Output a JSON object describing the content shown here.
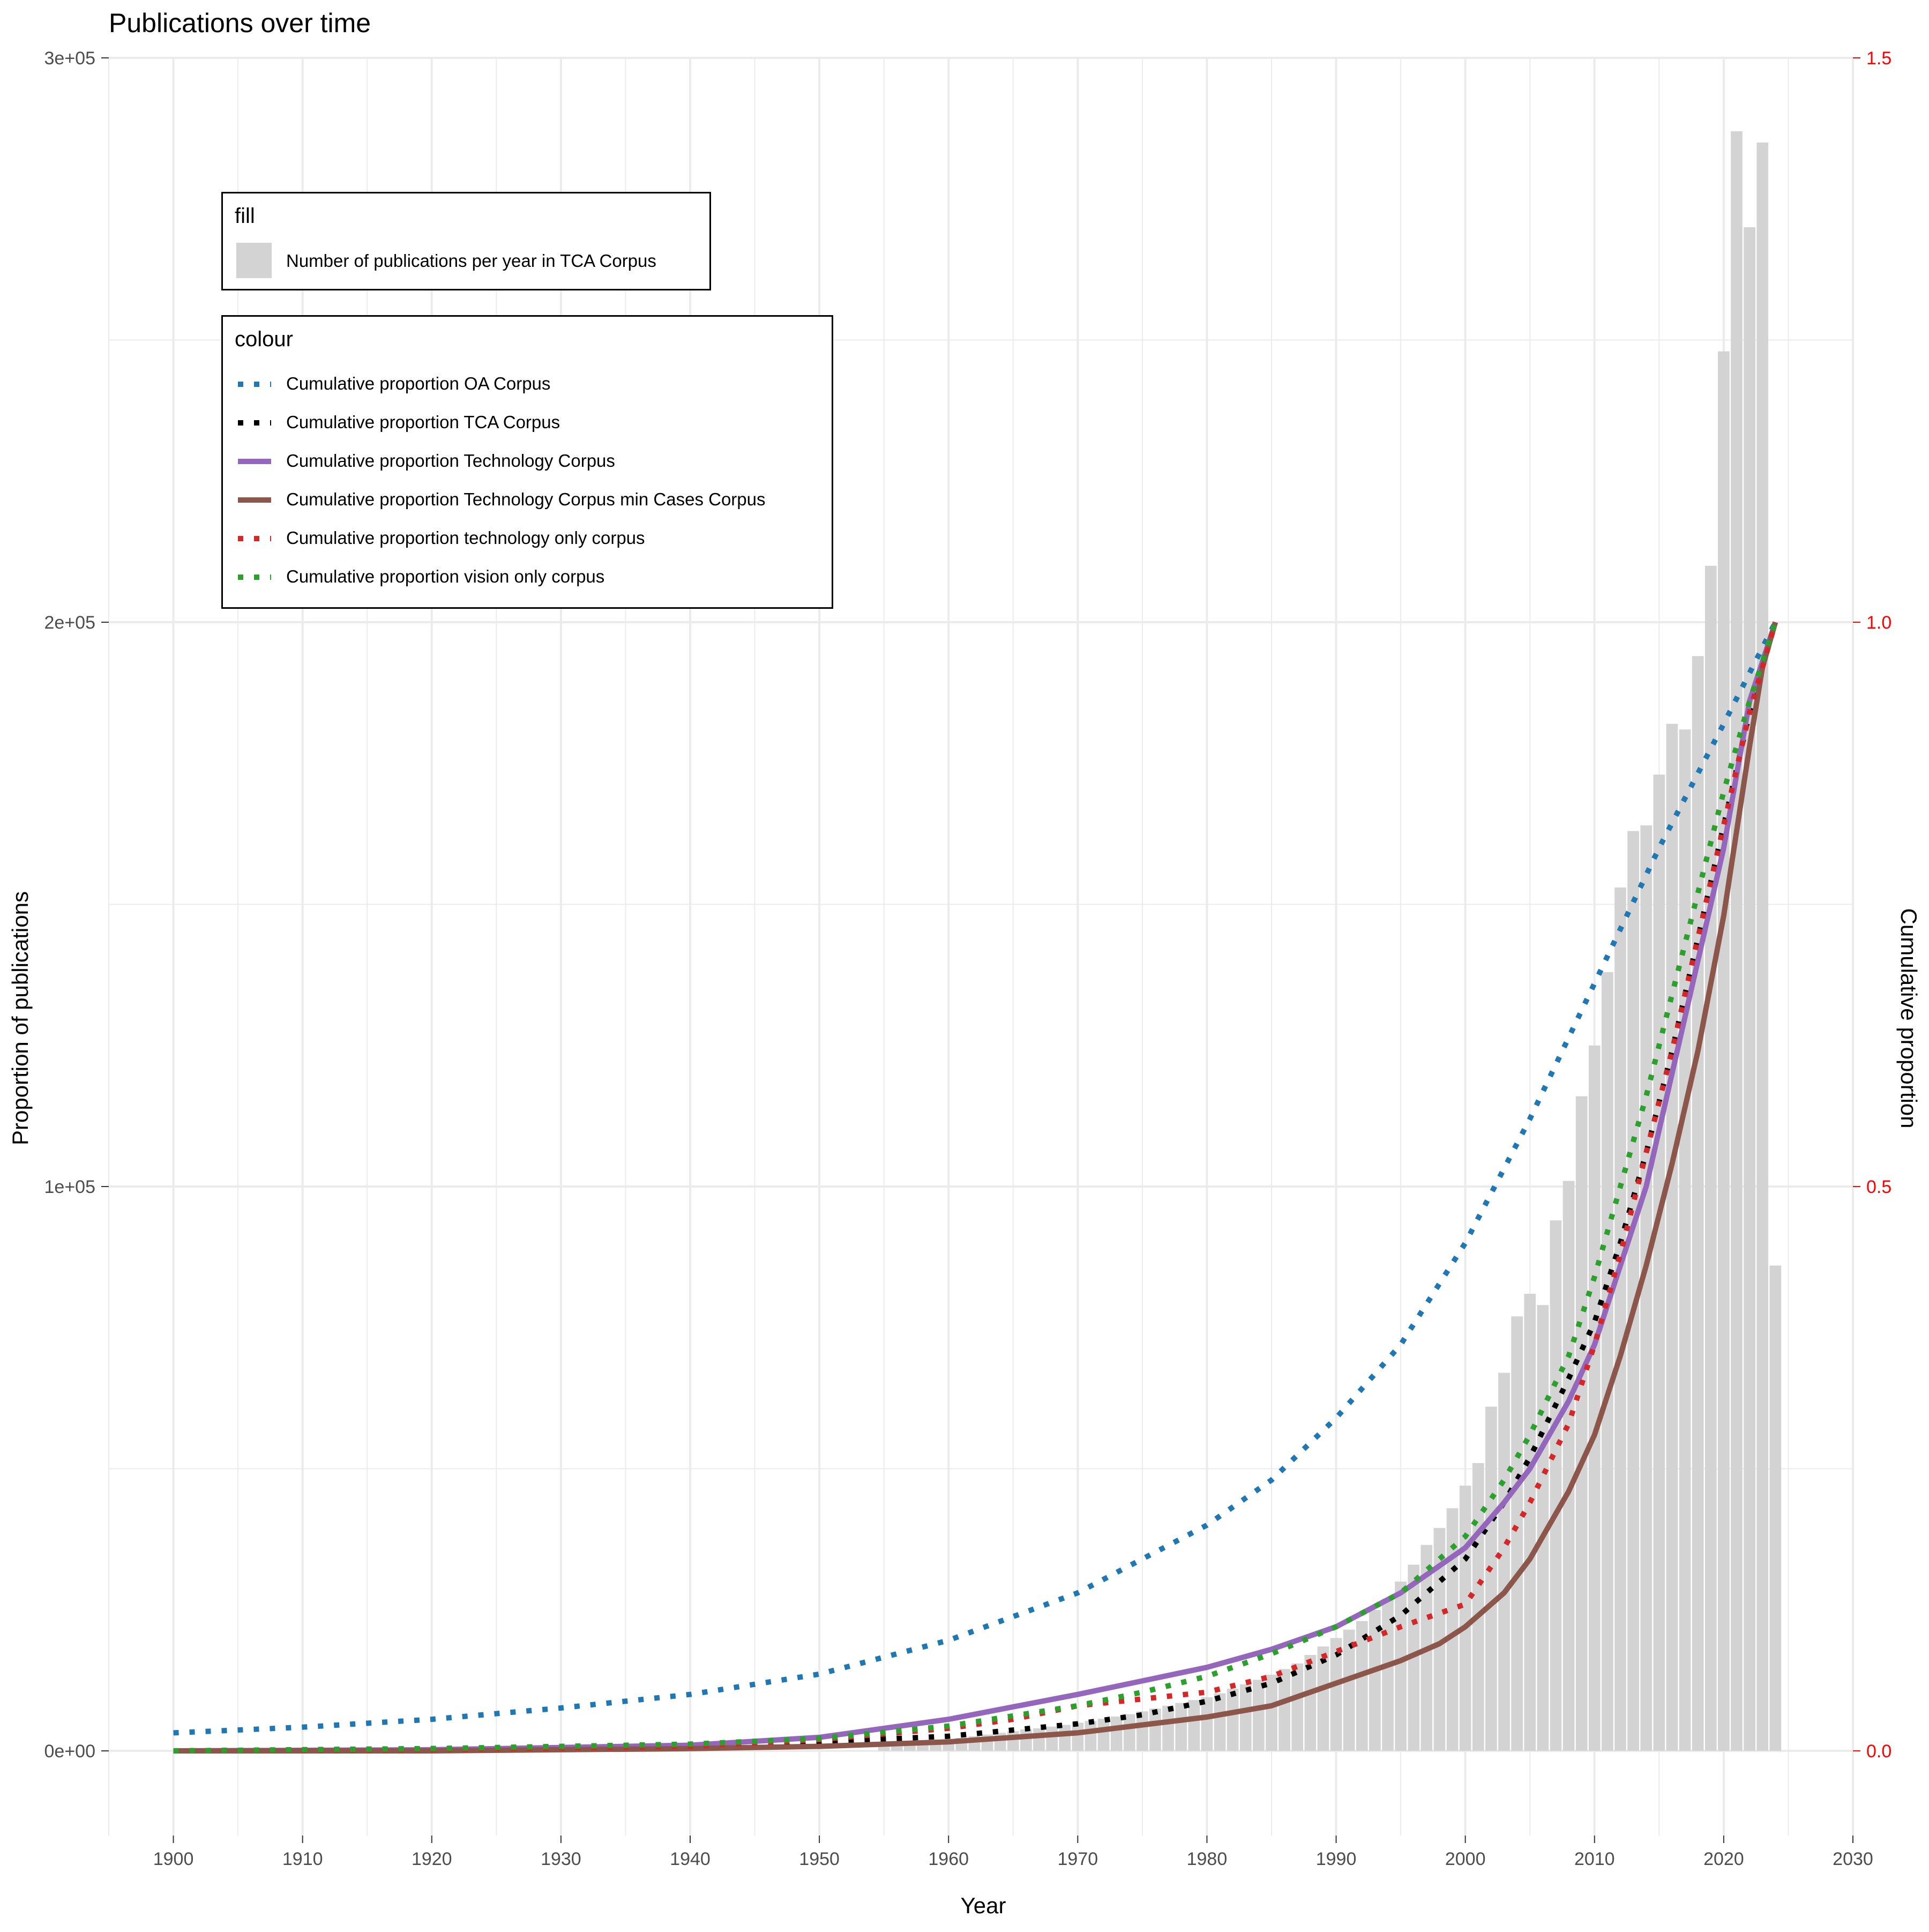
{
  "chart_data": {
    "type": "bar",
    "title": "Publications over time",
    "xlabel": "Year",
    "ylabel": "Proportion of publications",
    "ylabel_right": "Cumulative proportion",
    "xlim": [
      1895,
      2030
    ],
    "xticks": [
      "1900",
      "1910",
      "1920",
      "1930",
      "1940",
      "1950",
      "1960",
      "1970",
      "1980",
      "1990",
      "2000",
      "2010",
      "2020",
      "2030"
    ],
    "ylim": [
      -15000,
      300000
    ],
    "yticks": [
      "0e+00",
      "1e+05",
      "2e+05",
      "3e+05"
    ],
    "ylim_right": [
      -0.075,
      1.5
    ],
    "yticks_right": [
      "0.0",
      "0.5",
      "1.0",
      "1.5"
    ],
    "right_axis_color": "#ff0000",
    "grid": true,
    "legend_fill": {
      "title": "fill",
      "items": [
        {
          "label": "Number of publications per year in TCA Corpus",
          "color": "#d3d3d3"
        }
      ]
    },
    "legend_colour": {
      "title": "colour",
      "items": [
        {
          "label": "Cumulative proportion OA Corpus",
          "color": "#1f77b4",
          "style": "dotted"
        },
        {
          "label": "Cumulative proportion TCA Corpus",
          "color": "#000000",
          "style": "dotted"
        },
        {
          "label": "Cumulative proportion Technology Corpus",
          "color": "#9467bd",
          "style": "solid"
        },
        {
          "label": "Cumulative proportion Technology Corpus min Cases Corpus",
          "color": "#8c564b",
          "style": "solid"
        },
        {
          "label": "Cumulative proportion technology only corpus",
          "color": "#d62728",
          "style": "dotted"
        },
        {
          "label": "Cumulative proportion vision only corpus",
          "color": "#2ca02c",
          "style": "dotted"
        }
      ]
    },
    "bars": {
      "name": "Number of publications per year in TCA Corpus",
      "color": "#d3d3d3",
      "x": [
        1955,
        1956,
        1957,
        1958,
        1959,
        1960,
        1961,
        1962,
        1963,
        1964,
        1965,
        1966,
        1967,
        1968,
        1969,
        1970,
        1971,
        1972,
        1973,
        1974,
        1975,
        1976,
        1977,
        1978,
        1979,
        1980,
        1981,
        1982,
        1983,
        1984,
        1985,
        1986,
        1987,
        1988,
        1989,
        1990,
        1991,
        1992,
        1993,
        1994,
        1995,
        1996,
        1997,
        1998,
        1999,
        2000,
        2001,
        2002,
        2003,
        2004,
        2005,
        2006,
        2007,
        2008,
        2009,
        2010,
        2011,
        2012,
        2013,
        2014,
        2015,
        2016,
        2017,
        2018,
        2019,
        2020,
        2021,
        2022,
        2023,
        2024
      ],
      "values": [
        1000,
        1200,
        1400,
        1600,
        1800,
        2000,
        2300,
        2600,
        2900,
        3200,
        3500,
        3800,
        4000,
        4300,
        4600,
        5000,
        5300,
        5700,
        6100,
        6500,
        7000,
        7500,
        8000,
        8500,
        9000,
        9500,
        10200,
        11000,
        11800,
        12600,
        13500,
        14500,
        15500,
        17000,
        18500,
        20000,
        21500,
        23000,
        25000,
        27000,
        30000,
        33000,
        36500,
        39500,
        43000,
        47000,
        51000,
        61000,
        67000,
        77000,
        81000,
        79000,
        94000,
        101000,
        116000,
        125000,
        138000,
        153000,
        163000,
        164000,
        173000,
        182000,
        181000,
        194000,
        210000,
        248000,
        287000,
        270000,
        285000,
        86000
      ]
    },
    "series": [
      {
        "name": "Cumulative proportion OA Corpus",
        "color": "#1f77b4",
        "style": "dotted",
        "x": [
          1900,
          1910,
          1920,
          1930,
          1940,
          1950,
          1960,
          1970,
          1980,
          1985,
          1990,
          1995,
          2000,
          2005,
          2010,
          2015,
          2020,
          2024
        ],
        "values": [
          0.016,
          0.021,
          0.028,
          0.038,
          0.05,
          0.068,
          0.098,
          0.14,
          0.2,
          0.24,
          0.295,
          0.36,
          0.45,
          0.56,
          0.68,
          0.8,
          0.91,
          1.0
        ]
      },
      {
        "name": "Cumulative proportion TCA Corpus",
        "color": "#000000",
        "style": "dotted",
        "x": [
          1900,
          1920,
          1940,
          1950,
          1960,
          1970,
          1975,
          1980,
          1985,
          1990,
          1995,
          2000,
          2003,
          2005,
          2008,
          2010,
          2012,
          2014,
          2016,
          2018,
          2020,
          2022,
          2024
        ],
        "values": [
          0.0,
          0.002,
          0.005,
          0.008,
          0.013,
          0.024,
          0.032,
          0.044,
          0.06,
          0.085,
          0.12,
          0.17,
          0.22,
          0.26,
          0.33,
          0.38,
          0.45,
          0.53,
          0.62,
          0.72,
          0.82,
          0.92,
          1.0
        ]
      },
      {
        "name": "Cumulative proportion Technology Corpus",
        "color": "#9467bd",
        "style": "solid",
        "x": [
          1900,
          1920,
          1940,
          1950,
          1960,
          1970,
          1980,
          1985,
          1990,
          1995,
          2000,
          2003,
          2005,
          2008,
          2010,
          2012,
          2014,
          2016,
          2018,
          2020,
          2022,
          2024
        ],
        "values": [
          0.0,
          0.001,
          0.005,
          0.012,
          0.028,
          0.05,
          0.074,
          0.09,
          0.11,
          0.14,
          0.18,
          0.22,
          0.25,
          0.31,
          0.36,
          0.43,
          0.5,
          0.6,
          0.7,
          0.8,
          0.93,
          1.0
        ]
      },
      {
        "name": "Cumulative proportion Technology Corpus min Cases Corpus",
        "color": "#8c564b",
        "style": "solid",
        "x": [
          1900,
          1920,
          1940,
          1950,
          1960,
          1970,
          1975,
          1980,
          1985,
          1990,
          1995,
          1998,
          2000,
          2003,
          2005,
          2006,
          2008,
          2010,
          2012,
          2014,
          2016,
          2018,
          2020,
          2022,
          2023,
          2024
        ],
        "values": [
          0.0,
          0.0,
          0.002,
          0.004,
          0.008,
          0.016,
          0.023,
          0.03,
          0.04,
          0.06,
          0.08,
          0.095,
          0.11,
          0.14,
          0.17,
          0.19,
          0.23,
          0.28,
          0.35,
          0.43,
          0.52,
          0.62,
          0.74,
          0.89,
          0.96,
          1.0
        ]
      },
      {
        "name": "Cumulative proportion technology only corpus",
        "color": "#d62728",
        "style": "dotted",
        "x": [
          1900,
          1920,
          1940,
          1950,
          1960,
          1965,
          1970,
          1975,
          1980,
          1985,
          1990,
          1995,
          2000,
          2003,
          2005,
          2008,
          2010,
          2012,
          2014,
          2016,
          2018,
          2020,
          2022,
          2024
        ],
        "values": [
          0.0,
          0.001,
          0.004,
          0.01,
          0.02,
          0.028,
          0.04,
          0.046,
          0.052,
          0.066,
          0.088,
          0.11,
          0.13,
          0.18,
          0.22,
          0.29,
          0.36,
          0.44,
          0.53,
          0.62,
          0.72,
          0.82,
          0.92,
          1.0
        ]
      },
      {
        "name": "Cumulative proportion vision only corpus",
        "color": "#2ca02c",
        "style": "dotted",
        "x": [
          1900,
          1920,
          1940,
          1950,
          1960,
          1970,
          1975,
          1980,
          1985,
          1990,
          1995,
          2000,
          2003,
          2005,
          2008,
          2010,
          2012,
          2014,
          2016,
          2018,
          2020,
          2022,
          2024
        ],
        "values": [
          0.0,
          0.002,
          0.006,
          0.011,
          0.022,
          0.04,
          0.052,
          0.066,
          0.086,
          0.11,
          0.14,
          0.19,
          0.24,
          0.28,
          0.35,
          0.42,
          0.5,
          0.58,
          0.67,
          0.76,
          0.85,
          0.93,
          1.0
        ]
      }
    ]
  }
}
